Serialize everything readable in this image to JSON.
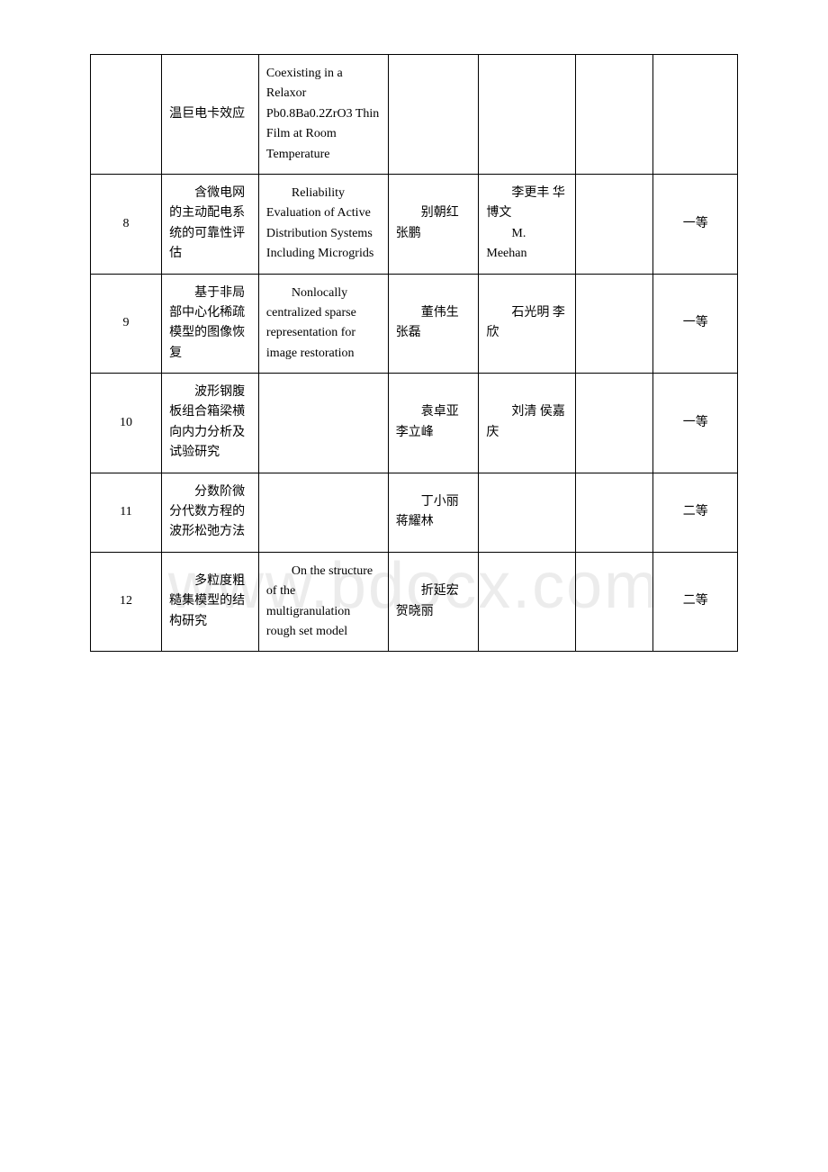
{
  "watermark": "www.bdocx.com",
  "rows": [
    {
      "num": "",
      "cn_title": "温巨电卡效应",
      "en_title": "Coexisting in a Relaxor Pb0.8Ba0.2ZrO3 Thin Film at Room Temperature",
      "authors1": "",
      "authors2": "",
      "grade": ""
    },
    {
      "num": "8",
      "cn_title": "含微电网的主动配电系统的可靠性评估",
      "en_title": "Reliability Evaluation of Active Distribution Systems Including Microgrids",
      "authors1": "别朝红 张鹏",
      "authors2": "李更丰 华博文\n　　M. Meehan",
      "grade": "一等"
    },
    {
      "num": "9",
      "cn_title": "基于非局部中心化稀疏模型的图像恢复",
      "en_title": "Nonlocally centralized sparse representation for image restoration",
      "authors1": "董伟生 张磊",
      "authors2": "石光明 李欣",
      "grade": "一等"
    },
    {
      "num": "10",
      "cn_title": "波形钢腹板组合箱梁横向内力分析及试验研究",
      "en_title": "",
      "authors1": "袁卓亚 李立峰",
      "authors2": "刘清 侯嘉庆",
      "grade": "一等"
    },
    {
      "num": "11",
      "cn_title": "分数阶微分代数方程的波形松弛方法",
      "en_title": "",
      "authors1": "丁小丽 蒋耀林",
      "authors2": "",
      "grade": "二等"
    },
    {
      "num": "12",
      "cn_title": "多粒度粗糙集模型的结构研究",
      "en_title": "On the structure of the multigranulation rough set model",
      "authors1": "折延宏 贺晓丽",
      "authors2": "",
      "grade": "二等"
    }
  ]
}
